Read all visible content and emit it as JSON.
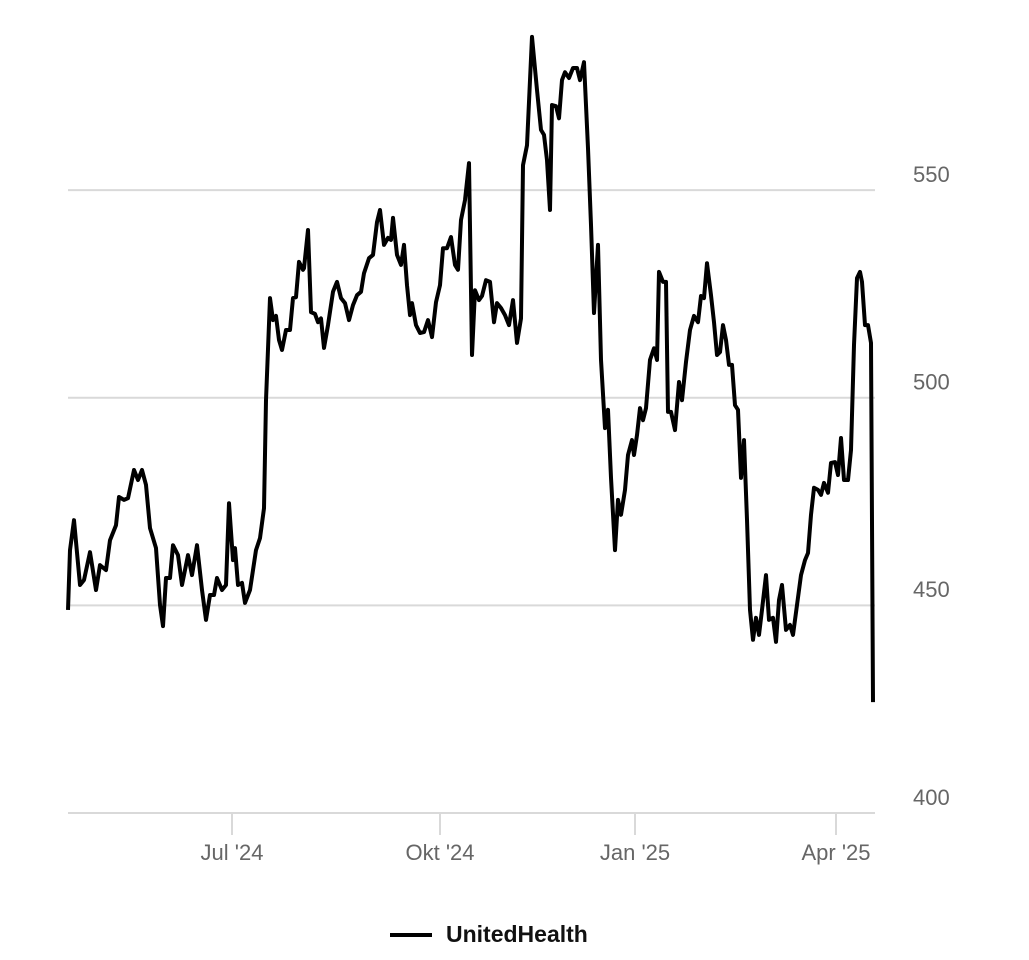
{
  "chart_data": {
    "type": "line",
    "x": [
      0,
      2,
      6,
      12,
      16,
      22,
      28,
      32,
      38,
      42,
      48,
      51,
      56,
      60,
      66,
      70,
      74,
      78,
      82,
      88,
      92,
      95,
      98,
      102,
      105,
      110,
      114,
      120,
      124,
      129,
      134,
      138,
      142,
      146,
      149,
      154,
      158,
      161,
      165,
      167,
      170,
      174,
      177,
      182,
      188,
      192,
      196,
      198,
      202,
      205,
      208,
      211,
      214,
      218,
      222,
      225,
      228,
      231,
      235,
      236,
      240,
      243,
      247,
      250,
      253,
      256,
      260,
      265,
      269,
      273,
      277,
      281,
      285,
      289,
      293,
      296,
      301,
      305,
      309,
      312,
      316,
      320,
      323,
      325,
      329,
      333,
      336,
      339,
      342,
      344,
      348,
      352,
      356,
      360,
      364,
      368,
      372,
      375,
      379,
      383,
      387,
      390,
      393,
      397,
      401,
      404,
      407,
      411,
      414,
      418,
      422,
      426,
      429,
      433,
      437,
      441,
      445,
      449,
      453,
      455,
      459,
      464,
      469,
      473,
      476,
      479,
      482,
      484,
      488,
      491,
      494,
      497,
      501,
      505,
      509,
      512,
      516,
      520,
      523,
      526,
      530,
      533,
      537,
      540,
      543,
      547,
      550,
      553,
      557,
      560,
      564,
      566,
      569,
      572,
      575,
      578,
      582,
      586,
      589,
      591,
      595,
      598,
      600,
      603,
      607,
      611,
      614,
      618,
      622,
      626,
      630,
      633,
      636,
      639,
      643,
      646,
      649,
      652,
      655,
      658,
      661,
      664,
      667,
      670,
      673,
      676,
      679,
      682,
      685,
      688,
      691,
      694,
      698,
      701,
      705,
      708,
      711,
      714,
      718,
      722,
      725,
      729,
      733,
      737,
      740,
      743,
      746,
      750,
      753,
      756,
      760,
      763,
      767,
      770,
      773,
      776,
      780,
      783,
      786,
      789,
      792,
      794,
      797,
      800,
      803,
      805
    ],
    "series": [
      {
        "name": "UnitedHealth",
        "color": "#000000",
        "values": [
          448.9,
          463.3,
          470.5,
          454.9,
          456.1,
          462.8,
          453.7,
          459.7,
          458.5,
          465.7,
          469.3,
          476.1,
          475.4,
          475.8,
          482.6,
          480.2,
          482.6,
          479.0,
          468.6,
          463.8,
          450.1,
          445.0,
          456.6,
          456.6,
          464.5,
          462.1,
          454.9,
          462.1,
          457.3,
          464.5,
          453.7,
          446.5,
          452.5,
          452.5,
          456.6,
          453.7,
          454.9,
          474.6,
          460.9,
          463.8,
          454.9,
          455.4,
          450.6,
          453.7,
          463.3,
          466.2,
          473.4,
          499.4,
          524.0,
          518.7,
          519.7,
          513.9,
          511.5,
          516.3,
          516.3,
          524.0,
          524.2,
          532.7,
          530.8,
          531.2,
          540.4,
          520.6,
          520.2,
          518.2,
          519.1,
          512.0,
          517.5,
          525.5,
          527.9,
          524.0,
          522.8,
          518.7,
          522.3,
          524.7,
          525.5,
          530.0,
          533.6,
          534.4,
          542.3,
          545.2,
          536.8,
          538.5,
          538.0,
          543.3,
          534.4,
          532.0,
          536.8,
          527.1,
          519.9,
          522.8,
          517.5,
          515.6,
          515.8,
          518.7,
          514.6,
          523.0,
          527.1,
          536.0,
          536.0,
          538.7,
          532.0,
          530.8,
          542.8,
          547.6,
          556.5,
          510.3,
          525.9,
          523.5,
          524.5,
          528.3,
          527.9,
          518.2,
          522.8,
          521.6,
          519.9,
          517.5,
          523.5,
          513.2,
          519.1,
          556.0,
          560.8,
          586.9,
          574.1,
          564.5,
          563.3,
          557.2,
          545.2,
          570.5,
          570.2,
          567.3,
          576.5,
          578.4,
          577.0,
          579.4,
          579.4,
          576.5,
          580.8,
          560.1,
          541.6,
          520.4,
          536.8,
          509.1,
          492.7,
          497.1,
          480.7,
          463.3,
          475.4,
          471.8,
          477.8,
          486.2,
          489.8,
          486.2,
          491.0,
          497.5,
          494.6,
          497.5,
          509.1,
          511.9,
          509.1,
          530.3,
          527.9,
          527.9,
          496.6,
          496.6,
          492.2,
          503.8,
          499.4,
          508.6,
          516.3,
          519.7,
          518.2,
          524.5,
          524.0,
          532.4,
          524.7,
          518.2,
          510.3,
          511.0,
          517.5,
          513.9,
          507.9,
          507.9,
          498.2,
          497.1,
          480.7,
          489.8,
          470.6,
          448.9,
          441.7,
          447.0,
          442.9,
          448.9,
          457.3,
          446.5,
          447.0,
          441.2,
          451.3,
          454.9,
          444.1,
          445.3,
          442.9,
          450.1,
          457.3,
          460.9,
          462.6,
          471.8,
          478.3,
          477.8,
          476.6,
          479.5,
          477.1,
          484.3,
          484.5,
          481.4,
          490.3,
          480.2,
          480.2,
          487.4,
          512.7,
          528.8,
          530.3,
          527.9,
          517.5,
          517.5,
          513.2,
          426.7
        ]
      }
    ],
    "xlim": [
      0,
      805
    ],
    "xticks": [
      {
        "value": 164,
        "label": "Jul '24"
      },
      {
        "value": 372,
        "label": "Okt '24"
      },
      {
        "value": 567,
        "label": "Jan '25"
      },
      {
        "value": 768,
        "label": "Apr '25"
      }
    ],
    "ylim": [
      400,
      590
    ],
    "yticks": [
      400,
      450,
      500,
      550
    ],
    "grid": true
  }
}
